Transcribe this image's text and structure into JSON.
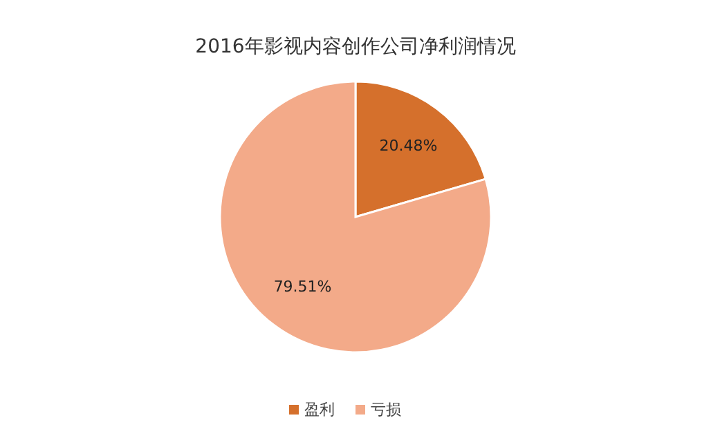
{
  "chart_data": {
    "type": "pie",
    "title": "2016年影视内容创作公司净利润情况",
    "categories": [
      "盈利",
      "亏损"
    ],
    "values": [
      20.48,
      79.51
    ],
    "colors": [
      "#d5702c",
      "#f3aa89"
    ],
    "value_labels": [
      "20.48%",
      "79.51%"
    ],
    "legend": "bottom"
  }
}
